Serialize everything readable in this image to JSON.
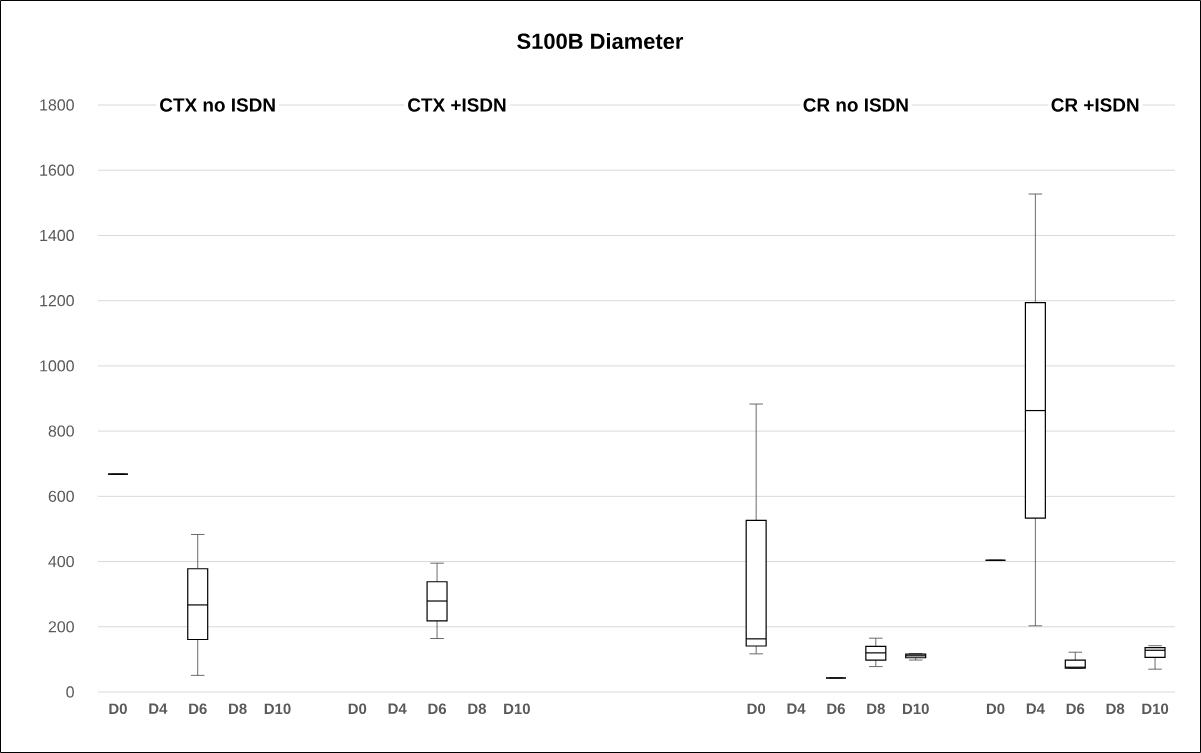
{
  "chart_data": {
    "type": "box",
    "title": "S100B Diameter",
    "categories": [
      "D0",
      "D4",
      "D6",
      "D8",
      "D10",
      null,
      "D0",
      "D4",
      "D6",
      "D8",
      "D10",
      null,
      null,
      null,
      null,
      null,
      "D0",
      "D4",
      "D6",
      "D8",
      "D10",
      null,
      "D0",
      "D4",
      "D6",
      "D8",
      "D10"
    ],
    "boxes": [
      {
        "low": 668,
        "q1": 668,
        "median": 668,
        "q3": 668,
        "high": 668
      },
      null,
      {
        "low": 51,
        "q1": 161,
        "median": 267,
        "q3": 378,
        "high": 483
      },
      null,
      null,
      null,
      null,
      null,
      {
        "low": 164,
        "q1": 218,
        "median": 279,
        "q3": 338,
        "high": 395
      },
      null,
      null,
      null,
      null,
      null,
      null,
      null,
      {
        "low": 117,
        "q1": 141,
        "median": 163,
        "q3": 526,
        "high": 883
      },
      null,
      {
        "low": 43,
        "q1": 43,
        "median": 43,
        "q3": 43,
        "high": 43
      },
      {
        "low": 78,
        "q1": 98,
        "median": 120,
        "q3": 140,
        "high": 165
      },
      {
        "low": 98,
        "q1": 105,
        "median": 111,
        "q3": 116,
        "high": 118
      },
      null,
      {
        "low": 404,
        "q1": 404,
        "median": 404,
        "q3": 404,
        "high": 404
      },
      {
        "low": 203,
        "q1": 533,
        "median": 863,
        "q3": 1194,
        "high": 1527
      },
      {
        "low": 72,
        "q1": 73,
        "median": 76,
        "q3": 98,
        "high": 122
      },
      null,
      {
        "low": 70,
        "q1": 106,
        "median": 128,
        "q3": 136,
        "high": 142
      }
    ],
    "annotations": [
      "CTX no ISDN",
      "CTX +ISDN",
      "CR no ISDN",
      "CR +ISDN"
    ],
    "ylim": [
      0,
      1800
    ],
    "yticks": [
      0,
      200,
      400,
      600,
      800,
      1000,
      1200,
      1400,
      1600,
      1800
    ],
    "grid": "y"
  }
}
